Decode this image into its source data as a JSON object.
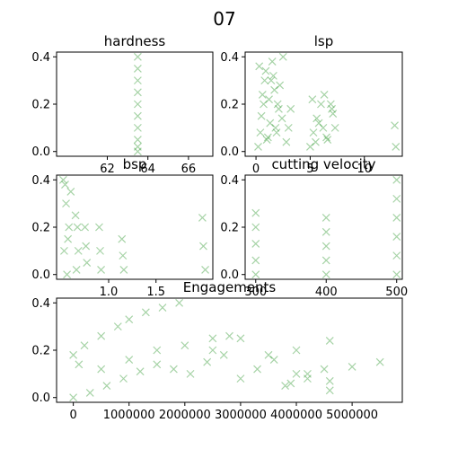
{
  "title": "07",
  "marker": "x",
  "series_color": "#008000",
  "chart_data": [
    {
      "type": "scatter",
      "title": "hardness",
      "xlim": [
        59.5,
        67.2
      ],
      "ylim": [
        -0.02,
        0.42
      ],
      "xticks": [
        62,
        64,
        66
      ],
      "yticks": [
        0.0,
        0.2,
        0.4
      ],
      "x": [
        63.5,
        63.5,
        63.5,
        63.5,
        63.5,
        63.5,
        63.5,
        63.5,
        63.5,
        63.5
      ],
      "y": [
        0.0,
        0.02,
        0.05,
        0.1,
        0.15,
        0.2,
        0.25,
        0.3,
        0.35,
        0.4
      ]
    },
    {
      "type": "scatter",
      "title": "lsp",
      "xlim": [
        -1,
        13.5
      ],
      "ylim": [
        -0.02,
        0.42
      ],
      "xticks": [
        0,
        5,
        10
      ],
      "yticks": [
        0.0,
        0.2,
        0.4
      ],
      "x": [
        0.2,
        0.5,
        0.8,
        1.0,
        1.2,
        1.5,
        1.8,
        2.0,
        2.2,
        2.5,
        0.4,
        0.9,
        1.3,
        1.7,
        2.1,
        0.6,
        1.1,
        1.6,
        2.4,
        3.0,
        0.3,
        1.4,
        2.8,
        3.2,
        0.7,
        1.9,
        5.0,
        5.3,
        5.6,
        6.0,
        6.3,
        6.6,
        7.0,
        7.3,
        5.2,
        5.8,
        6.5,
        7.1,
        5.5,
        6.2,
        6.9,
        12.8,
        12.9
      ],
      "y": [
        0.02,
        0.15,
        0.3,
        0.05,
        0.22,
        0.38,
        0.1,
        0.2,
        0.28,
        0.4,
        0.08,
        0.34,
        0.12,
        0.26,
        0.18,
        0.24,
        0.06,
        0.32,
        0.14,
        0.1,
        0.36,
        0.3,
        0.04,
        0.18,
        0.2,
        0.08,
        0.02,
        0.08,
        0.14,
        0.2,
        0.24,
        0.05,
        0.18,
        0.1,
        0.22,
        0.12,
        0.06,
        0.16,
        0.04,
        0.1,
        0.2,
        0.11,
        0.02
      ]
    },
    {
      "type": "scatter",
      "title": "bsp",
      "xlim": [
        0.45,
        2.1
      ],
      "ylim": [
        -0.02,
        0.42
      ],
      "xticks": [
        1.0,
        1.5
      ],
      "yticks": [
        0.0,
        0.2,
        0.4
      ],
      "x": [
        0.52,
        0.55,
        0.58,
        0.53,
        0.56,
        0.6,
        0.65,
        0.68,
        0.66,
        0.75,
        0.77,
        0.9,
        0.92,
        1.14,
        1.16,
        1.99,
        2.02,
        0.54,
        0.57,
        0.67,
        0.76,
        0.91,
        1.15,
        2.0
      ],
      "y": [
        0.4,
        0.3,
        0.2,
        0.1,
        0.0,
        0.35,
        0.25,
        0.1,
        0.02,
        0.2,
        0.05,
        0.2,
        0.02,
        0.15,
        0.02,
        0.24,
        0.02,
        0.38,
        0.15,
        0.2,
        0.12,
        0.1,
        0.08,
        0.12
      ]
    },
    {
      "type": "scatter",
      "title": "cutting velocity",
      "xlim": [
        285,
        508
      ],
      "ylim": [
        -0.02,
        0.42
      ],
      "xticks": [
        300,
        400,
        500
      ],
      "yticks": [
        0.0,
        0.2,
        0.4
      ],
      "x": [
        300,
        300,
        300,
        300,
        300,
        400,
        400,
        400,
        400,
        400,
        500,
        500,
        500,
        500,
        500,
        500
      ],
      "y": [
        0.0,
        0.06,
        0.13,
        0.2,
        0.26,
        0.0,
        0.06,
        0.12,
        0.18,
        0.24,
        0.0,
        0.08,
        0.16,
        0.24,
        0.32,
        0.4
      ]
    },
    {
      "type": "scatter",
      "title": "Engagements",
      "xlim": [
        -300000,
        5900000
      ],
      "ylim": [
        -0.02,
        0.42
      ],
      "xticks": [
        0,
        1000000,
        2000000,
        3000000,
        4000000,
        5000000
      ],
      "yticks": [
        0.0,
        0.2,
        0.4
      ],
      "x": [
        0,
        200000,
        500000,
        800000,
        1000000,
        1300000,
        1600000,
        1900000,
        0,
        300000,
        600000,
        900000,
        1200000,
        1500000,
        1800000,
        2100000,
        2400000,
        2700000,
        3000000,
        3300000,
        3600000,
        3900000,
        4200000,
        4600000,
        100000,
        500000,
        1000000,
        1500000,
        2000000,
        2500000,
        3000000,
        3500000,
        4000000,
        4600000,
        3800000,
        4200000,
        4600000,
        4000000,
        4500000,
        5000000,
        5500000,
        2500000,
        2800000
      ],
      "y": [
        0.18,
        0.22,
        0.26,
        0.3,
        0.33,
        0.36,
        0.38,
        0.4,
        0.0,
        0.02,
        0.05,
        0.08,
        0.11,
        0.14,
        0.12,
        0.1,
        0.15,
        0.18,
        0.08,
        0.12,
        0.16,
        0.06,
        0.1,
        0.03,
        0.14,
        0.12,
        0.16,
        0.2,
        0.22,
        0.2,
        0.25,
        0.18,
        0.2,
        0.24,
        0.05,
        0.08,
        0.07,
        0.1,
        0.12,
        0.13,
        0.15,
        0.25,
        0.26
      ]
    }
  ]
}
